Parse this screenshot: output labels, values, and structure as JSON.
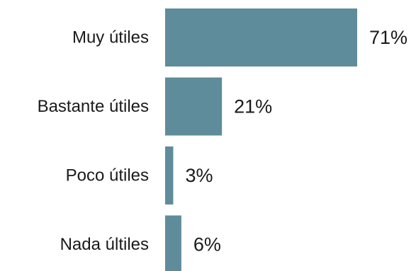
{
  "chart_data": {
    "type": "bar",
    "orientation": "horizontal",
    "categories": [
      "Muy útiles",
      "Bastante útiles",
      "Poco útiles",
      "Nada últiles"
    ],
    "values": [
      71,
      21,
      3,
      6
    ],
    "value_labels": [
      "71%",
      "21%",
      "3%",
      "6%"
    ],
    "unit": "%",
    "title": "",
    "xlabel": "",
    "ylabel": "",
    "xlim": [
      0,
      71
    ],
    "grid": false,
    "legend": "none",
    "bar_color": "#5f8c9a"
  }
}
